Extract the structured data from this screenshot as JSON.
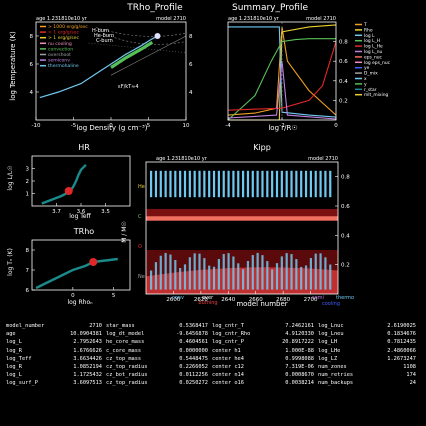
{
  "colors": {
    "bg": "#000000",
    "axis": "#ffffff",
    "orange": "#f0a020",
    "yellow": "#e8d030",
    "cyan": "#70c8f0",
    "teal": "#1a8a8a",
    "red": "#e02828",
    "green": "#58c058",
    "purple": "#c080e0",
    "salmon": "#f07060",
    "blue": "#4060ff",
    "pink": "#f090c0",
    "gray": "#a0a0a0"
  },
  "panels": {
    "trho": {
      "title": "TRho_Profile",
      "age": "age 1.231810e10 yr",
      "model": "model 2710",
      "xlabel": "log Density (g cm⁻³)",
      "ylabel": "log Temperature (K)",
      "note": "εF/kT≈4",
      "legend": [
        "> 1000 erg/g/sec",
        "> 1 erg/g/sec",
        "> 1 erg/g/sec",
        "nu cooling",
        "convection",
        "overshoot",
        "semiconv",
        "thermohaline"
      ],
      "label_overlay": [
        "H-burn",
        "He-burn",
        "C-burn"
      ]
    },
    "summary": {
      "title": "Summary_Profile",
      "age": "age 1.231810e10 yr",
      "model": "model 2710",
      "xlabel": "log r/R☉",
      "legend": [
        "T",
        "Rho",
        "log L",
        "log L_H",
        "log L_He",
        "log L_nu",
        "eps_nuc",
        "log eps_nuc",
        "ye",
        "D_mix",
        "x",
        "y",
        "r_star",
        "mlt_mixing"
      ]
    },
    "hr": {
      "title": "HR",
      "xlabel": "log Teff",
      "ylabel": "log L/L☉"
    },
    "trho_small": {
      "title": "TRho",
      "xlabel": "log Rhoₙ",
      "ylabel": "log Tₙ (K)"
    },
    "kipp": {
      "title": "Kipp",
      "age": "age 1.231810e10 yr",
      "model": "model 2710",
      "xlabel": "model number",
      "ylabel": "M / M☉",
      "burning": "burning",
      "legend_bottom": [
        "conv",
        "over",
        "semi",
        "thermo",
        "cooling"
      ],
      "side_labels": [
        "He",
        "C",
        "O",
        "Ne"
      ]
    }
  },
  "chart_data": [
    {
      "type": "line",
      "panel": "trho",
      "xlim": [
        -10,
        10
      ],
      "ylim": [
        2,
        9
      ],
      "xticks": [
        -10,
        -5,
        0,
        5,
        10
      ],
      "yticks": [
        4,
        6,
        8
      ],
      "yticks_right": [
        4,
        6,
        8
      ],
      "series": [
        {
          "name": "profile",
          "x": [
            -9.5,
            -7,
            -4,
            -2,
            0,
            2,
            4,
            5.5,
            6.2,
            6.5
          ],
          "y": [
            3.6,
            4.0,
            4.6,
            5.3,
            6.0,
            6.7,
            7.3,
            7.8,
            8.0,
            8.1
          ]
        }
      ]
    },
    {
      "type": "line",
      "panel": "summary",
      "xlim": [
        -4,
        0
      ],
      "ylim": [
        0,
        1
      ],
      "xticks": [
        -4,
        -2,
        0
      ],
      "yticks": [
        0.2,
        0.4,
        0.6,
        0.8
      ],
      "series": [
        {
          "name": "T",
          "x": [
            -4,
            -3,
            -2.2,
            -2,
            -1.8,
            -1,
            0
          ],
          "y": [
            0.05,
            0.07,
            0.12,
            0.95,
            0.6,
            0.3,
            0.05
          ]
        },
        {
          "name": "x",
          "x": [
            -4,
            -2.1,
            -2.0,
            -1.0,
            0
          ],
          "y": [
            0.0,
            0.0,
            0.9,
            0.95,
            0.97
          ]
        },
        {
          "name": "y",
          "x": [
            -4,
            -2.1,
            -2.0,
            -1.0,
            0
          ],
          "y": [
            0.95,
            0.95,
            0.08,
            0.05,
            0.03
          ]
        },
        {
          "name": "log L",
          "x": [
            -4,
            -3,
            -2.4,
            -2,
            -1.5,
            -1,
            0
          ],
          "y": [
            0.0,
            0.25,
            0.6,
            0.8,
            0.82,
            0.83,
            0.83
          ]
        },
        {
          "name": "ye",
          "x": [
            -4,
            -2,
            -1,
            -0.5,
            0
          ],
          "y": [
            0.1,
            0.12,
            0.2,
            0.35,
            0.8
          ]
        },
        {
          "name": "log eps_nuc",
          "x": [
            -4,
            -2.2,
            -2.0,
            -1.8,
            0
          ],
          "y": [
            0.02,
            0.05,
            0.6,
            0.05,
            0.01
          ]
        }
      ]
    },
    {
      "type": "line",
      "panel": "hr",
      "xlim": [
        3.8,
        3.4
      ],
      "ylim": [
        0,
        4
      ],
      "xticks": [
        3.7,
        3.6,
        3.5
      ],
      "yticks": [
        1,
        2,
        3
      ],
      "series": [
        {
          "name": "track",
          "x": [
            3.76,
            3.72,
            3.68,
            3.66,
            3.64,
            3.63,
            3.62,
            3.61,
            3.6,
            3.58
          ],
          "y": [
            0.2,
            0.5,
            0.8,
            1.0,
            1.3,
            1.6,
            2.0,
            2.5,
            2.9,
            3.3
          ]
        }
      ],
      "marker": {
        "x": 3.65,
        "y": 1.2
      }
    },
    {
      "type": "line",
      "panel": "trho_small",
      "xlim": [
        -5,
        7
      ],
      "ylim": [
        6,
        8.5
      ],
      "xticks": [
        0,
        5
      ],
      "yticks": [
        6,
        7,
        8
      ],
      "series": [
        {
          "name": "track",
          "x": [
            -4.5,
            -3,
            -1.5,
            0,
            1.5,
            2.5,
            3.5,
            4.5,
            5.5
          ],
          "y": [
            6.1,
            6.4,
            6.7,
            7.0,
            7.2,
            7.4,
            7.45,
            7.5,
            7.55
          ]
        }
      ],
      "marker": {
        "x": 2.5,
        "y": 7.4
      }
    },
    {
      "type": "area",
      "panel": "kipp",
      "xlim": [
        2580,
        2720
      ],
      "ylim": [
        0,
        0.9
      ],
      "xticks": [
        2600,
        2620,
        2640,
        2660,
        2680,
        2700
      ],
      "yticks_right": [
        0.2,
        0.4,
        0.6,
        0.8
      ],
      "series": [
        {
          "name": "envelope-top",
          "values": [
            0.56,
            0.56,
            0.56
          ]
        },
        {
          "name": "core-top",
          "values": [
            0.48,
            0.47,
            0.49
          ]
        }
      ]
    }
  ],
  "table": {
    "rows": [
      [
        "model_number",
        "2710",
        "star_mass",
        "0.5368417",
        "log_cntr_T",
        "7.2462161",
        "log_Lnuc",
        "2.6190025"
      ],
      [
        "age",
        "10.0904381",
        "log_dt_model",
        "-9.6456878",
        "log_cntr_Rho",
        "4.9120330",
        "log_Lneu",
        "0.1834676"
      ],
      [
        "log_L",
        "2.7952643",
        "he_core_mass",
        "0.4604561",
        "log_cntr_P",
        "20.8917222",
        "log_LH",
        "0.7812435"
      ],
      [
        "log_R",
        "1.6766626",
        "c_core_mass",
        "0.0000000",
        "center h1",
        "1.000E-88",
        "log_LHe",
        "2.4860066"
      ],
      [
        "log_Teff",
        "3.6634426",
        "cz_top_mass",
        "0.5448475",
        "center he4",
        "0.9998088",
        "log_LZ",
        "1.2673247"
      ],
      [
        "log_R",
        "1.0852194",
        "cz_top_radius",
        "0.2266052",
        "center c12",
        "7.319E-06",
        "num_zones",
        "1108"
      ],
      [
        "log_L",
        "1.1725432",
        "cz_bot_radius",
        "0.0112256",
        "center n14",
        "0.0008670",
        "num_retries",
        "174"
      ],
      [
        "log_surf_P",
        "3.6097513",
        "cz_top_radius",
        "0.0250272",
        "center o16",
        "0.0038214",
        "num_backups",
        "24"
      ]
    ]
  }
}
